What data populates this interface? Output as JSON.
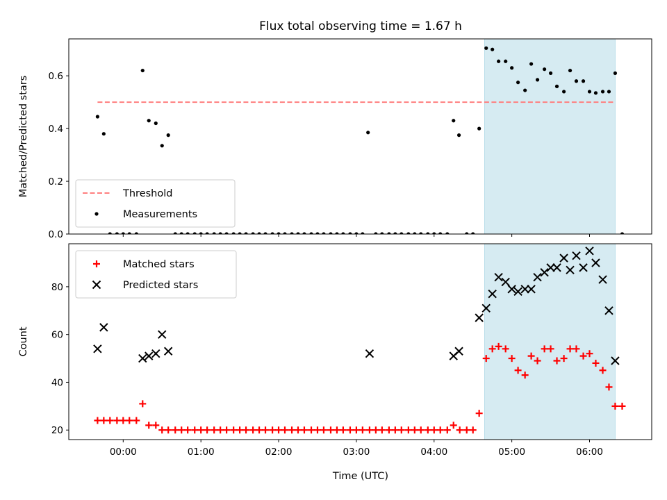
{
  "chart_data": {
    "title": "Flux total observing time = 1.67 h",
    "xlabel": "Time (UTC)",
    "x_unit": "hours UTC",
    "xlim": [
      -0.7,
      6.8
    ],
    "xticks": [
      {
        "value": 0,
        "label": "00:00"
      },
      {
        "value": 1,
        "label": "01:00"
      },
      {
        "value": 2,
        "label": "02:00"
      },
      {
        "value": 3,
        "label": "03:00"
      },
      {
        "value": 4,
        "label": "04:00"
      },
      {
        "value": 5,
        "label": "05:00"
      },
      {
        "value": 6,
        "label": "06:00"
      }
    ],
    "highlight_span": {
      "x": [
        4.65,
        6.33
      ],
      "color": "#add8e6"
    },
    "panels": [
      {
        "type": "scatter",
        "ylabel": "Matched/Predicted stars",
        "ylim": [
          0,
          0.74
        ],
        "yticks": [
          {
            "value": 0,
            "label": "0.0"
          },
          {
            "value": 0.2,
            "label": "0.2"
          },
          {
            "value": 0.4,
            "label": "0.4"
          },
          {
            "value": 0.6,
            "label": "0.6"
          }
        ],
        "legend_position": "lower-left",
        "series": [
          {
            "name": "Threshold",
            "kind": "hline",
            "y": 0.5,
            "x": [
              -0.33,
              6.33
            ],
            "color": "#ff7f7f"
          },
          {
            "name": "Measurements",
            "kind": "dot",
            "color": "#000000",
            "x": [
              -0.33,
              -0.25,
              -0.17,
              -0.08,
              0,
              0.08,
              0.17,
              0.25,
              0.33,
              0.42,
              0.5,
              0.58,
              0.67,
              0.75,
              0.83,
              0.92,
              1,
              1.08,
              1.17,
              1.25,
              1.33,
              1.42,
              1.5,
              1.58,
              1.67,
              1.75,
              1.83,
              1.92,
              2,
              2.08,
              2.17,
              2.25,
              2.33,
              2.42,
              2.5,
              2.58,
              2.67,
              2.75,
              2.83,
              2.92,
              3,
              3.08,
              3.15,
              3.25,
              3.33,
              3.42,
              3.5,
              3.58,
              3.67,
              3.75,
              3.83,
              3.92,
              4,
              4.08,
              4.17,
              4.25,
              4.32,
              4.42,
              4.5,
              4.58,
              4.67,
              4.75,
              4.83,
              4.92,
              5,
              5.08,
              5.17,
              5.25,
              5.33,
              5.42,
              5.5,
              5.58,
              5.67,
              5.75,
              5.83,
              5.92,
              6,
              6.08,
              6.17,
              6.25,
              6.33,
              6.42
            ],
            "y": [
              0.445,
              0.38,
              0,
              0,
              0,
              0,
              0,
              0.62,
              0.43,
              0.42,
              0.335,
              0.375,
              0,
              0,
              0,
              0,
              0,
              0,
              0,
              0,
              0,
              0,
              0,
              0,
              0,
              0,
              0,
              0,
              0,
              0,
              0,
              0,
              0,
              0,
              0,
              0,
              0,
              0,
              0,
              0,
              0,
              0,
              0.385,
              0,
              0,
              0,
              0,
              0,
              0,
              0,
              0,
              0,
              0,
              0,
              0,
              0.43,
              0.375,
              0,
              0,
              0.4,
              0.705,
              0.7,
              0.655,
              0.655,
              0.63,
              0.575,
              0.545,
              0.645,
              0.585,
              0.625,
              0.61,
              0.56,
              0.54,
              0.62,
              0.58,
              0.58,
              0.54,
              0.535,
              0.54,
              0.54,
              0.61,
              0
            ]
          }
        ]
      },
      {
        "type": "scatter",
        "ylabel": "Count",
        "ylim": [
          16,
          98
        ],
        "yticks": [
          {
            "value": 20,
            "label": "20"
          },
          {
            "value": 40,
            "label": "40"
          },
          {
            "value": 60,
            "label": "60"
          },
          {
            "value": 80,
            "label": "80"
          }
        ],
        "legend_position": "upper-left",
        "series": [
          {
            "name": "Matched stars",
            "kind": "plus",
            "color": "#ff0000",
            "x": [
              -0.33,
              -0.25,
              -0.17,
              -0.08,
              0,
              0.08,
              0.17,
              0.25,
              0.33,
              0.42,
              0.5,
              0.58,
              0.67,
              0.75,
              0.83,
              0.92,
              1,
              1.08,
              1.17,
              1.25,
              1.33,
              1.42,
              1.5,
              1.58,
              1.67,
              1.75,
              1.83,
              1.92,
              2,
              2.08,
              2.17,
              2.25,
              2.33,
              2.42,
              2.5,
              2.58,
              2.67,
              2.75,
              2.83,
              2.92,
              3,
              3.08,
              3.17,
              3.25,
              3.33,
              3.42,
              3.5,
              3.58,
              3.67,
              3.75,
              3.83,
              3.92,
              4,
              4.08,
              4.17,
              4.25,
              4.33,
              4.42,
              4.5,
              4.58,
              4.67,
              4.75,
              4.83,
              4.92,
              5,
              5.08,
              5.17,
              5.25,
              5.33,
              5.42,
              5.5,
              5.58,
              5.67,
              5.75,
              5.83,
              5.92,
              6,
              6.08,
              6.17,
              6.25,
              6.33,
              6.42
            ],
            "y": [
              24,
              24,
              24,
              24,
              24,
              24,
              24,
              31,
              22,
              22,
              20,
              20,
              20,
              20,
              20,
              20,
              20,
              20,
              20,
              20,
              20,
              20,
              20,
              20,
              20,
              20,
              20,
              20,
              20,
              20,
              20,
              20,
              20,
              20,
              20,
              20,
              20,
              20,
              20,
              20,
              20,
              20,
              20,
              20,
              20,
              20,
              20,
              20,
              20,
              20,
              20,
              20,
              20,
              20,
              20,
              22,
              20,
              20,
              20,
              27,
              50,
              54,
              55,
              54,
              50,
              45,
              43,
              51,
              49,
              54,
              54,
              49,
              50,
              54,
              54,
              51,
              52,
              48,
              45,
              38,
              30,
              30
            ]
          },
          {
            "name": "Predicted stars",
            "kind": "x",
            "color": "#000000",
            "x": [
              -0.33,
              -0.25,
              0.25,
              0.33,
              0.42,
              0.5,
              0.58,
              3.17,
              4.25,
              4.32,
              4.58,
              4.67,
              4.75,
              4.83,
              4.92,
              5,
              5.08,
              5.17,
              5.25,
              5.33,
              5.42,
              5.5,
              5.58,
              5.67,
              5.75,
              5.83,
              5.92,
              6,
              6.08,
              6.17,
              6.25,
              6.33
            ],
            "y": [
              54,
              63,
              50,
              51,
              52,
              60,
              53,
              52,
              51,
              53,
              67,
              71,
              77,
              84,
              82,
              79,
              78,
              79,
              79,
              84,
              86,
              88,
              88,
              92,
              87,
              93,
              88,
              95,
              90,
              83,
              70,
              49
            ]
          }
        ]
      }
    ]
  }
}
